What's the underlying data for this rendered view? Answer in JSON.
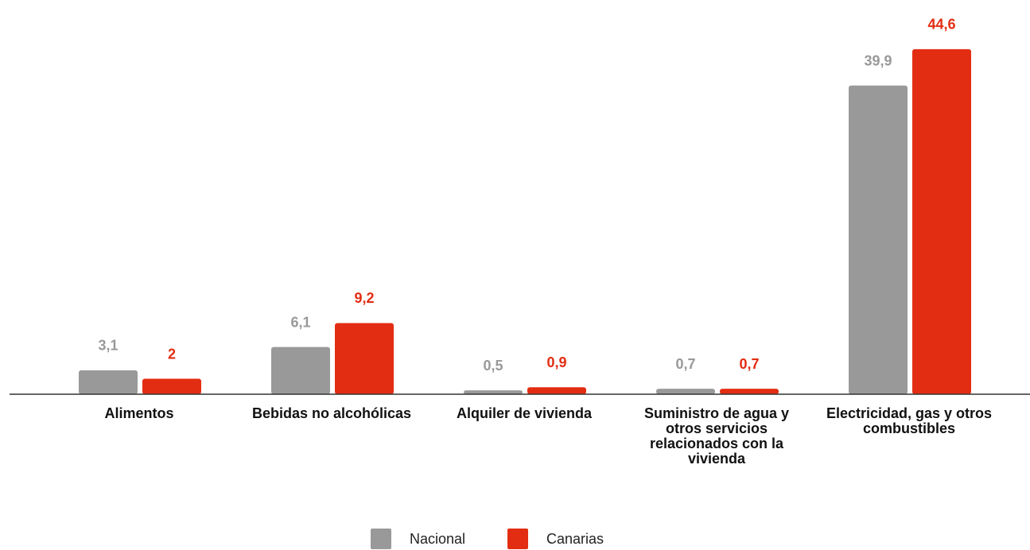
{
  "chart_data": {
    "type": "bar",
    "categories": [
      "Alimentos",
      "Bebidas no alcohólicas",
      "Alquiler de vivienda",
      "Suministro de agua y otros servicios relacionados con la vivienda",
      "Electricidad, gas y otros combustibles"
    ],
    "series": [
      {
        "name": "Nacional",
        "color": "#999999",
        "values": [
          3.1,
          6.1,
          0.5,
          0.7,
          39.9
        ],
        "value_labels": [
          "3,1",
          "6,1",
          "0,5",
          "0,7",
          "39,9"
        ]
      },
      {
        "name": "Canarias",
        "color": "#e32d12",
        "values": [
          2,
          9.2,
          0.9,
          0.7,
          44.6
        ],
        "value_labels": [
          "2",
          "9,2",
          "0,9",
          "0,7",
          "44,6"
        ]
      }
    ],
    "ylim": [
      0,
      45
    ]
  }
}
